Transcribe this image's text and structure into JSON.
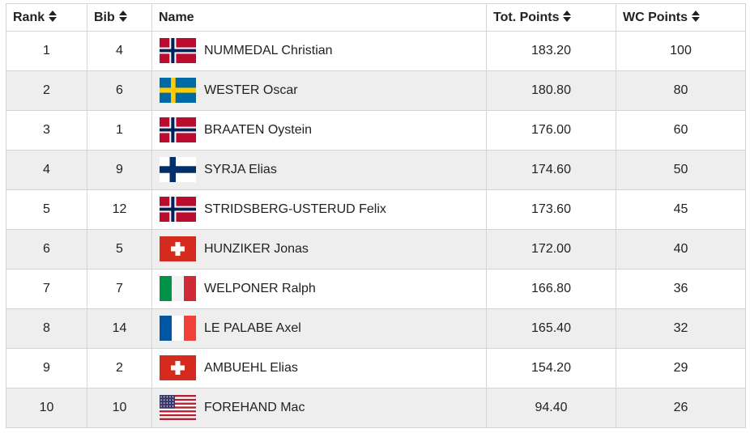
{
  "table": {
    "headers": {
      "rank": "Rank",
      "bib": "Bib",
      "name": "Name",
      "tot_points": "Tot. Points",
      "wc_points": "WC Points"
    },
    "rows": [
      {
        "rank": "1",
        "bib": "4",
        "flag": "norway-flag-icon",
        "name": "NUMMEDAL Christian",
        "tot": "183.20",
        "wc": "100"
      },
      {
        "rank": "2",
        "bib": "6",
        "flag": "sweden-flag-icon",
        "name": "WESTER Oscar",
        "tot": "180.80",
        "wc": "80"
      },
      {
        "rank": "3",
        "bib": "1",
        "flag": "norway-flag-icon",
        "name": "BRAATEN Oystein",
        "tot": "176.00",
        "wc": "60"
      },
      {
        "rank": "4",
        "bib": "9",
        "flag": "finland-flag-icon",
        "name": "SYRJA Elias",
        "tot": "174.60",
        "wc": "50"
      },
      {
        "rank": "5",
        "bib": "12",
        "flag": "norway-flag-icon",
        "name": "STRIDSBERG-USTERUD Felix",
        "tot": "173.60",
        "wc": "45"
      },
      {
        "rank": "6",
        "bib": "5",
        "flag": "switzerland-flag-icon",
        "name": "HUNZIKER Jonas",
        "tot": "172.00",
        "wc": "40"
      },
      {
        "rank": "7",
        "bib": "7",
        "flag": "italy-flag-icon",
        "name": "WELPONER Ralph",
        "tot": "166.80",
        "wc": "36"
      },
      {
        "rank": "8",
        "bib": "14",
        "flag": "france-flag-icon",
        "name": "LE PALABE Axel",
        "tot": "165.40",
        "wc": "32"
      },
      {
        "rank": "9",
        "bib": "2",
        "flag": "switzerland-flag-icon",
        "name": "AMBUEHL Elias",
        "tot": "154.20",
        "wc": "29"
      },
      {
        "rank": "10",
        "bib": "10",
        "flag": "usa-flag-icon",
        "name": "FOREHAND Mac",
        "tot": "94.40",
        "wc": "26"
      }
    ]
  },
  "colors": {
    "row_alt": "#eeeeee",
    "border": "#d4d4d4"
  }
}
